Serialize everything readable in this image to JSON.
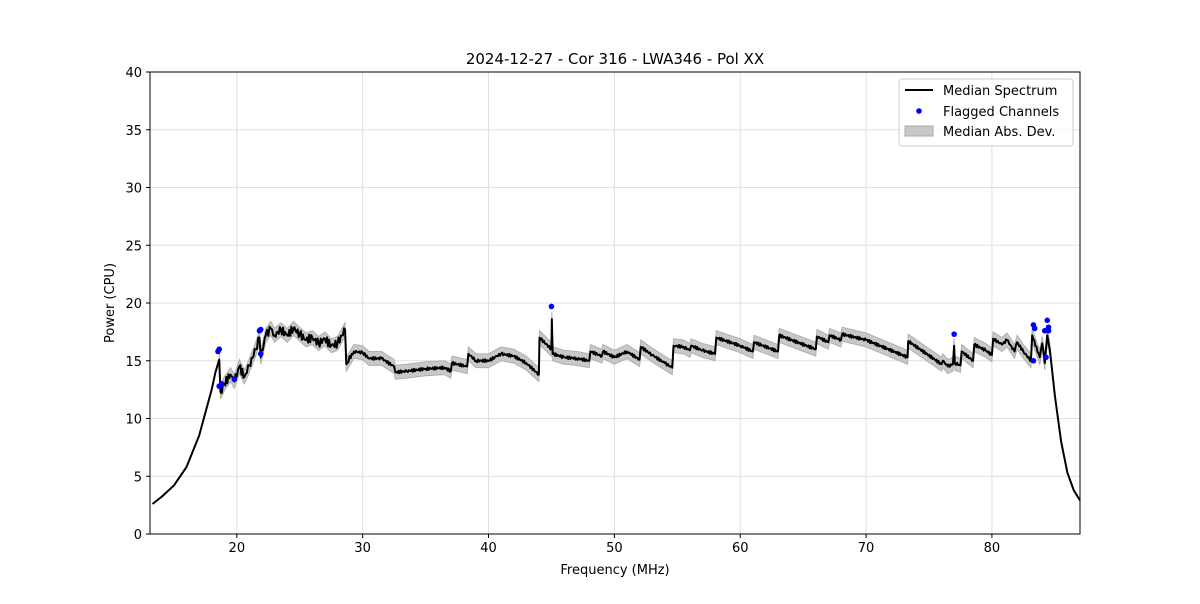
{
  "chart_data": {
    "type": "line",
    "title": "2024-12-27 - Cor 316 - LWA346 - Pol XX",
    "xlabel": "Frequency (MHz)",
    "ylabel": "Power (CPU)",
    "xlim": [
      13.1,
      87.0
    ],
    "ylim": [
      0,
      40
    ],
    "xticks": [
      20,
      30,
      40,
      50,
      60,
      70,
      80
    ],
    "yticks": [
      0,
      5,
      10,
      15,
      20,
      25,
      30,
      35,
      40
    ],
    "grid": true,
    "legend_position": "top-right",
    "legend": [
      "Median Spectrum",
      "Flagged Channels",
      "Median Abs. Dev."
    ],
    "colors": {
      "median": "#000000",
      "flagged": "#0000ff",
      "mad": "#c8c8c8"
    },
    "median_spectrum": [
      [
        13.3,
        2.6
      ],
      [
        14,
        3.2
      ],
      [
        15,
        4.2
      ],
      [
        16,
        5.8
      ],
      [
        17,
        8.5
      ],
      [
        18,
        12.5
      ],
      [
        18.3,
        14
      ],
      [
        18.6,
        15.1
      ],
      [
        18.7,
        12.3
      ],
      [
        19.0,
        13
      ],
      [
        19.5,
        13.8
      ],
      [
        19.8,
        13.2
      ],
      [
        20.2,
        14.5
      ],
      [
        20.6,
        13.6
      ],
      [
        21.0,
        14.6
      ],
      [
        21.5,
        16.0
      ],
      [
        21.8,
        17.0
      ],
      [
        21.9,
        15.3
      ],
      [
        22.3,
        17.2
      ],
      [
        22.7,
        17.8
      ],
      [
        23,
        17.2
      ],
      [
        23.5,
        17.7
      ],
      [
        24,
        17.2
      ],
      [
        24.5,
        17.8
      ],
      [
        25,
        17.3
      ],
      [
        25.5,
        16.8
      ],
      [
        26,
        17.0
      ],
      [
        26.5,
        16.5
      ],
      [
        27,
        16.9
      ],
      [
        27.5,
        16.3
      ],
      [
        28,
        16.5
      ],
      [
        28.6,
        17.7
      ],
      [
        28.7,
        14.7
      ],
      [
        29.3,
        15.8
      ],
      [
        30,
        15.7
      ],
      [
        30.5,
        15.2
      ],
      [
        31.5,
        15.2
      ],
      [
        32.5,
        14.5
      ],
      [
        32.6,
        14.0
      ],
      [
        33.5,
        14.1
      ],
      [
        35,
        14.3
      ],
      [
        36.5,
        14.4
      ],
      [
        37.0,
        14.1
      ],
      [
        37.1,
        14.8
      ],
      [
        38.3,
        14.5
      ],
      [
        38.4,
        15.6
      ],
      [
        39,
        15
      ],
      [
        40,
        15
      ],
      [
        40.5,
        15.3
      ],
      [
        41,
        15.6
      ],
      [
        42,
        15.4
      ],
      [
        43,
        14.8
      ],
      [
        44,
        13.8
      ],
      [
        44.05,
        17.0
      ],
      [
        45,
        16
      ],
      [
        45.03,
        18.6
      ],
      [
        45.1,
        15.6
      ],
      [
        46,
        15.3
      ],
      [
        47,
        15.2
      ],
      [
        48,
        15
      ],
      [
        48.1,
        15.8
      ],
      [
        49,
        15.4
      ],
      [
        49.1,
        15.8
      ],
      [
        50,
        15.3
      ],
      [
        51,
        15.8
      ],
      [
        52,
        15.1
      ],
      [
        52.1,
        16.2
      ],
      [
        53,
        15.5
      ],
      [
        54,
        14.8
      ],
      [
        54.6,
        14.4
      ],
      [
        54.7,
        16.3
      ],
      [
        55.5,
        16.2
      ],
      [
        56,
        15.9
      ],
      [
        56.1,
        16.3
      ],
      [
        57,
        15.9
      ],
      [
        58,
        15.6
      ],
      [
        58.1,
        17.0
      ],
      [
        60,
        16.3
      ],
      [
        61,
        15.8
      ],
      [
        61.1,
        16.6
      ],
      [
        63,
        15.8
      ],
      [
        63.1,
        17.2
      ],
      [
        66,
        16.0
      ],
      [
        66.1,
        17.1
      ],
      [
        67,
        16.6
      ],
      [
        67.1,
        17.2
      ],
      [
        68,
        16.8
      ],
      [
        68.1,
        17.3
      ],
      [
        70,
        16.8
      ],
      [
        73.3,
        15.3
      ],
      [
        73.35,
        16.7
      ],
      [
        76,
        14.7
      ],
      [
        76.1,
        15.0
      ],
      [
        76.5,
        14.5
      ],
      [
        76.9,
        14.7
      ],
      [
        77.0,
        16.3
      ],
      [
        77.05,
        14.8
      ],
      [
        77.5,
        14.6
      ],
      [
        77.6,
        15.8
      ],
      [
        78.5,
        15.0
      ],
      [
        78.6,
        16.4
      ],
      [
        79.5,
        15.9
      ],
      [
        80,
        15.5
      ],
      [
        80.1,
        16.9
      ],
      [
        80.8,
        16.4
      ],
      [
        81.2,
        16.8
      ],
      [
        81.8,
        15.8
      ],
      [
        82.0,
        16.6
      ],
      [
        82.5,
        15.8
      ],
      [
        83.1,
        15.0
      ],
      [
        83.2,
        17.2
      ],
      [
        83.8,
        15.3
      ],
      [
        84.0,
        16.5
      ],
      [
        84.2,
        14.8
      ],
      [
        84.4,
        17.2
      ],
      [
        84.6,
        16.0
      ],
      [
        85,
        12
      ],
      [
        85.5,
        8
      ],
      [
        86,
        5.3
      ],
      [
        86.5,
        3.8
      ],
      [
        87,
        2.9
      ]
    ],
    "mad_halfwidth": 0.6,
    "mad_range": [
      18.6,
      84.6
    ],
    "flagged_channels": [
      [
        18.5,
        15.8
      ],
      [
        18.6,
        16.0
      ],
      [
        18.6,
        12.8
      ],
      [
        18.8,
        13.0
      ],
      [
        19.8,
        13.4
      ],
      [
        21.8,
        17.6
      ],
      [
        21.9,
        17.7
      ],
      [
        21.9,
        15.6
      ],
      [
        45.0,
        19.7
      ],
      [
        77.0,
        17.3
      ],
      [
        83.3,
        18.1
      ],
      [
        83.4,
        17.8
      ],
      [
        83.3,
        15.0
      ],
      [
        84.2,
        17.6
      ],
      [
        84.4,
        18.5
      ],
      [
        84.5,
        17.9
      ],
      [
        84.3,
        15.3
      ],
      [
        84.5,
        17.6
      ]
    ]
  }
}
